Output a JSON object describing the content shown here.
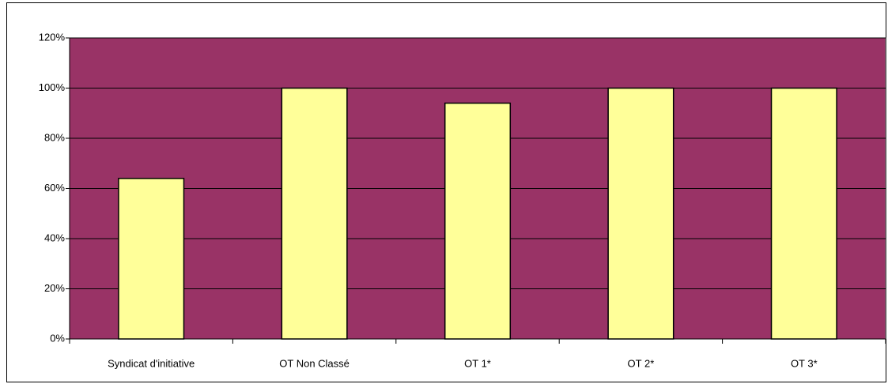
{
  "chart_data": {
    "type": "bar",
    "categories": [
      "Syndicat d'initiative",
      "OT Non Classé",
      "OT 1*",
      "OT 2*",
      "OT 3*"
    ],
    "values": [
      64,
      100,
      94,
      100,
      100
    ],
    "color": "#ffff99",
    "plot_background": "#993366",
    "ylim": [
      0,
      120
    ],
    "yticks": [
      {
        "value": 0,
        "label": "0%"
      },
      {
        "value": 20,
        "label": "20%"
      },
      {
        "value": 40,
        "label": "40%"
      },
      {
        "value": 60,
        "label": "60%"
      },
      {
        "value": 80,
        "label": "80%"
      },
      {
        "value": 100,
        "label": "100%"
      },
      {
        "value": 120,
        "label": "120%"
      }
    ],
    "grid": true
  }
}
